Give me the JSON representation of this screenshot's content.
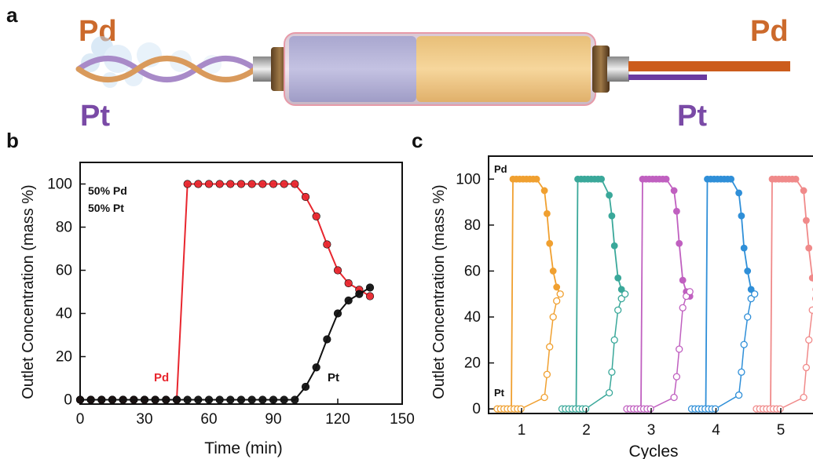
{
  "panel_a": {
    "panel_label": "a",
    "left_top_label": "Pd",
    "left_bottom_label": "Pt",
    "right_top_label": "Pd",
    "right_bottom_label": "Pt",
    "colors": {
      "pd": "#cc6a2c",
      "pt": "#7a4aa6"
    }
  },
  "chart_data": [
    {
      "panel_label": "b",
      "type": "line",
      "xlabel": "Time (min)",
      "ylabel": "Outlet Concentration (mass %)",
      "xlim": [
        0,
        150
      ],
      "ylim": [
        -2,
        110
      ],
      "xticks": [
        0,
        30,
        60,
        90,
        120,
        150
      ],
      "yticks": [
        0,
        20,
        40,
        60,
        80,
        100
      ],
      "annotation_lines": [
        "50% Pd",
        "50% Pt"
      ],
      "series": [
        {
          "name": "Pd",
          "color": "#e8262e",
          "points": [
            [
              0,
              0
            ],
            [
              5,
              0
            ],
            [
              10,
              0
            ],
            [
              15,
              0
            ],
            [
              20,
              0
            ],
            [
              25,
              0
            ],
            [
              30,
              0
            ],
            [
              35,
              0
            ],
            [
              40,
              0
            ],
            [
              45,
              0
            ],
            [
              50,
              100
            ],
            [
              55,
              100
            ],
            [
              60,
              100
            ],
            [
              65,
              100
            ],
            [
              70,
              100
            ],
            [
              75,
              100
            ],
            [
              80,
              100
            ],
            [
              85,
              100
            ],
            [
              90,
              100
            ],
            [
              95,
              100
            ],
            [
              100,
              100
            ],
            [
              105,
              94
            ],
            [
              110,
              85
            ],
            [
              115,
              72
            ],
            [
              120,
              60
            ],
            [
              125,
              54
            ],
            [
              130,
              51
            ],
            [
              135,
              48
            ]
          ]
        },
        {
          "name": "Pt",
          "color": "#111111",
          "points": [
            [
              0,
              0
            ],
            [
              5,
              0
            ],
            [
              10,
              0
            ],
            [
              15,
              0
            ],
            [
              20,
              0
            ],
            [
              25,
              0
            ],
            [
              30,
              0
            ],
            [
              35,
              0
            ],
            [
              40,
              0
            ],
            [
              45,
              0
            ],
            [
              50,
              0
            ],
            [
              55,
              0
            ],
            [
              60,
              0
            ],
            [
              65,
              0
            ],
            [
              70,
              0
            ],
            [
              75,
              0
            ],
            [
              80,
              0
            ],
            [
              85,
              0
            ],
            [
              90,
              0
            ],
            [
              95,
              0
            ],
            [
              100,
              0
            ],
            [
              105,
              6
            ],
            [
              110,
              15
            ],
            [
              115,
              28
            ],
            [
              120,
              40
            ],
            [
              125,
              46
            ],
            [
              130,
              49
            ],
            [
              135,
              52
            ]
          ]
        }
      ]
    },
    {
      "panel_label": "c",
      "type": "line",
      "xlabel": "Cycles",
      "ylabel": "Outlet Concentration (mass %)",
      "ylim": [
        -2,
        110
      ],
      "yticks": [
        0,
        20,
        40,
        60,
        80,
        100
      ],
      "categories": [
        "1",
        "2",
        "3",
        "4",
        "5"
      ],
      "series_labels": {
        "pd": "Pd",
        "pt": "Pt"
      },
      "cycles": [
        {
          "cycle": "1",
          "color": "#f0a030",
          "pd": [
            100,
            100,
            100,
            100,
            100,
            100,
            100,
            100,
            95,
            85,
            72,
            60,
            53,
            50
          ],
          "pt": [
            0,
            0,
            0,
            0,
            0,
            0,
            0,
            0,
            5,
            15,
            27,
            40,
            47,
            50
          ]
        },
        {
          "cycle": "2",
          "color": "#3aa89a",
          "pd": [
            100,
            100,
            100,
            100,
            100,
            100,
            100,
            100,
            93,
            84,
            71,
            57,
            52,
            50
          ],
          "pt": [
            0,
            0,
            0,
            0,
            0,
            0,
            0,
            0,
            7,
            16,
            30,
            43,
            48,
            50
          ]
        },
        {
          "cycle": "3",
          "color": "#c060c0",
          "pd": [
            100,
            100,
            100,
            100,
            100,
            100,
            100,
            100,
            95,
            86,
            72,
            56,
            51,
            49
          ],
          "pt": [
            0,
            0,
            0,
            0,
            0,
            0,
            0,
            0,
            5,
            14,
            26,
            44,
            49,
            51
          ]
        },
        {
          "cycle": "4",
          "color": "#2f8fd8",
          "pd": [
            100,
            100,
            100,
            100,
            100,
            100,
            100,
            100,
            94,
            84,
            70,
            60,
            52,
            50
          ],
          "pt": [
            0,
            0,
            0,
            0,
            0,
            0,
            0,
            0,
            6,
            16,
            28,
            40,
            48,
            50
          ]
        },
        {
          "cycle": "5",
          "color": "#f08a8a",
          "pd": [
            100,
            100,
            100,
            100,
            100,
            100,
            100,
            100,
            95,
            82,
            70,
            57,
            52,
            50
          ],
          "pt": [
            0,
            0,
            0,
            0,
            0,
            0,
            0,
            0,
            5,
            18,
            30,
            43,
            48,
            50
          ]
        }
      ]
    }
  ]
}
